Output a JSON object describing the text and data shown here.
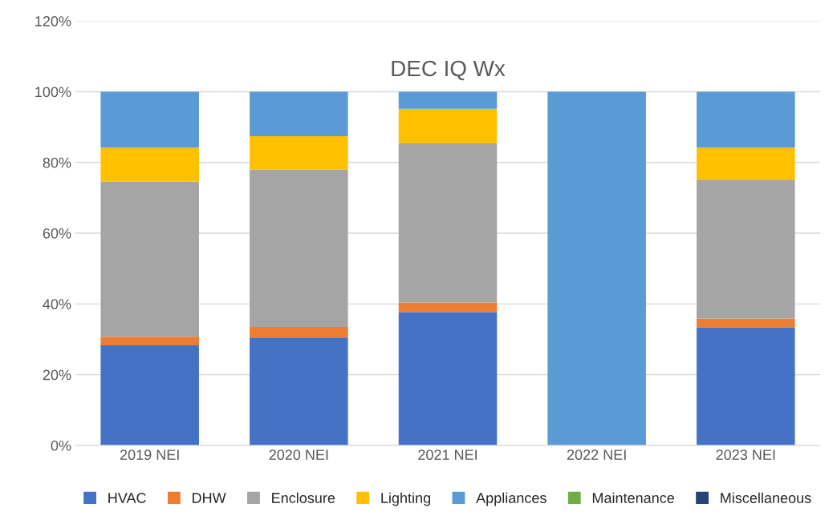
{
  "chart_data": {
    "type": "bar",
    "title": "DEC IQ Wx",
    "stacked": true,
    "categories": [
      "2019 NEI",
      "2020 NEI",
      "2021 NEI",
      "2022 NEI",
      "2023 NEI"
    ],
    "series": [
      {
        "name": "HVAC",
        "color": "#4472c4",
        "values": [
          28.3,
          30.5,
          37.7,
          0,
          33.4
        ]
      },
      {
        "name": "DHW",
        "color": "#ed7d31",
        "values": [
          2.4,
          3.0,
          2.7,
          0,
          2.4
        ]
      },
      {
        "name": "Enclosure",
        "color": "#a5a5a5",
        "values": [
          43.9,
          44.5,
          45.0,
          0,
          39.3
        ]
      },
      {
        "name": "Lighting",
        "color": "#ffc000",
        "values": [
          9.6,
          9.4,
          9.8,
          0,
          9.1
        ]
      },
      {
        "name": "Appliances",
        "color": "#5b9bd5",
        "values": [
          15.8,
          12.6,
          4.8,
          100,
          15.8
        ]
      },
      {
        "name": "Maintenance",
        "color": "#70ad47",
        "values": [
          0,
          0,
          0,
          0,
          0
        ]
      },
      {
        "name": "Miscellaneous",
        "color": "#264478",
        "values": [
          0,
          0,
          0,
          0,
          0
        ]
      }
    ],
    "ylim": [
      0,
      120
    ],
    "yticks": [
      {
        "value": 0,
        "label": "0%"
      },
      {
        "value": 20,
        "label": "20%"
      },
      {
        "value": 40,
        "label": "40%"
      },
      {
        "value": 60,
        "label": "60%"
      },
      {
        "value": 80,
        "label": "80%"
      },
      {
        "value": 100,
        "label": "100%"
      },
      {
        "value": 120,
        "label": "120%"
      }
    ],
    "grid": "y",
    "legend": "bottom"
  }
}
